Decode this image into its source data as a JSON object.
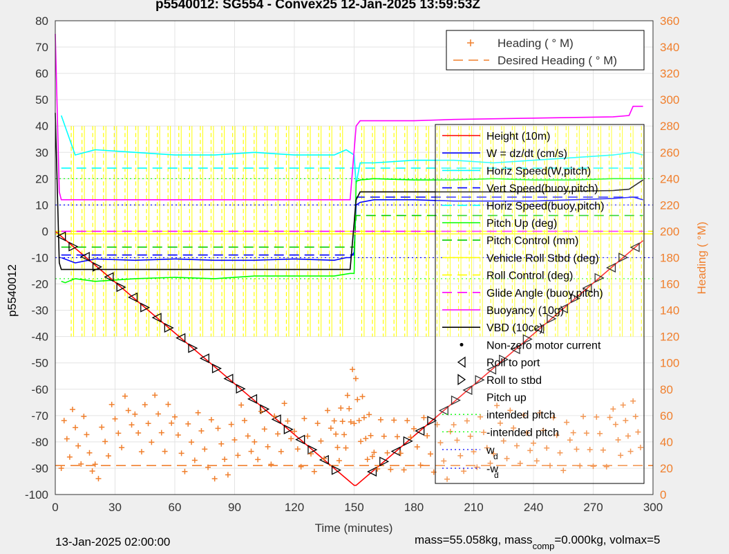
{
  "chart_data": {
    "type": "line",
    "title": "p5540012: SG554 - Convex25 12-Jan-2025 13:59:53Z",
    "xlabel": "Time (minutes)",
    "ylabel": "p5540012",
    "ylabel_right": "Heading (  °M)",
    "xlim": [
      0,
      300
    ],
    "ylim": [
      -100,
      80
    ],
    "ylim_right": [
      0,
      360
    ],
    "xticks": [
      "0",
      "30",
      "60",
      "90",
      "120",
      "150",
      "180",
      "210",
      "240",
      "270",
      "300"
    ],
    "yticks": [
      "-100",
      "-90",
      "-80",
      "-70",
      "-60",
      "-50",
      "-40",
      "-30",
      "-20",
      "-10",
      "0",
      "10",
      "20",
      "30",
      "40",
      "50",
      "60",
      "70",
      "80"
    ],
    "yticks_right": [
      "0",
      "20",
      "40",
      "60",
      "80",
      "100",
      "120",
      "140",
      "160",
      "180",
      "200",
      "220",
      "240",
      "260",
      "280",
      "300",
      "320",
      "340",
      "360"
    ],
    "grid": true,
    "colors": {
      "height": "#ff0000",
      "w": "#0000ff",
      "horiz": "#00ffff",
      "vert_buoy": "#0000ff",
      "horiz_buoy": "#00ffff",
      "pitch": "#00ff00",
      "pitch_ctl": "#00cc00",
      "roll": "#ffff00",
      "roll_ctl": "#ffff00",
      "glide": "#ff00ff",
      "buoyancy": "#ff00ff",
      "vbd": "#000000",
      "heading": "#f07f2c",
      "right_axis": "#f07f2c"
    },
    "legend_top": {
      "placement": "top-right",
      "entries": [
        "Heading (  ° M)",
        "Desired Heading (    ° M)"
      ]
    },
    "legend_main": {
      "placement": "right",
      "entries": [
        "Height (10m)",
        "W = dz/dt (cm/s)",
        "Horiz Speed(W,pitch)",
        "Vert Speed(buoy,pitch)",
        "Horiz Speed(buoy,pitch)",
        "Pitch Up (deg)",
        "Pitch Control (mm)",
        "Vehicle Roll Stbd (deg)",
        "Roll Control (deg)",
        "Glide Angle (buoy,pitch)",
        "Buoyancy (10g)",
        "VBD (10cc)",
        "Non-zero motor current",
        "Roll to port",
        "Roll to stbd",
        "Pitch up",
        "intended pitch",
        "-intended pitch"
      ],
      "wd_label": "w",
      "wd_sub": "d",
      "neg_wd_label": "-w",
      "neg_wd_sub": "d"
    },
    "series": [
      {
        "name": "Height (10m)",
        "x": [
          0,
          150,
          151,
          295
        ],
        "y": [
          0,
          -96.5,
          -96.5,
          -3.5
        ]
      },
      {
        "name": "W = dz/dt (cm/s)",
        "x": [
          3,
          10,
          20,
          40,
          60,
          80,
          100,
          120,
          140,
          146,
          148,
          150,
          151,
          153,
          160,
          180,
          200,
          220,
          240,
          260,
          280,
          290,
          295
        ],
        "y": [
          -10,
          -12,
          -10.5,
          -11,
          -10.5,
          -11,
          -11,
          -10.5,
          -11,
          -10,
          -10,
          -8,
          10,
          11,
          12,
          12,
          11.5,
          11.5,
          11.5,
          12,
          12.5,
          13,
          12
        ]
      },
      {
        "name": "Horiz Speed(W,pitch)",
        "x": [
          3,
          10,
          20,
          40,
          60,
          80,
          100,
          120,
          140,
          146,
          148,
          150,
          151,
          153,
          160,
          180,
          200,
          220,
          240,
          260,
          280,
          290,
          295
        ],
        "y": [
          44,
          29,
          31,
          30,
          29,
          29,
          30,
          29,
          29,
          31,
          30,
          29,
          18,
          26,
          26,
          27,
          27,
          26,
          27,
          28,
          29,
          30,
          29
        ]
      },
      {
        "name": "Vert Speed(buoy,pitch)",
        "x": [
          3,
          150,
          151,
          295
        ],
        "y": [
          -9,
          -9,
          13,
          13
        ]
      },
      {
        "name": "Horiz Speed(buoy,pitch)",
        "x": [
          3,
          150,
          151,
          295
        ],
        "y": [
          24,
          24,
          24,
          24
        ]
      },
      {
        "name": "Pitch Up (deg)",
        "x": [
          3,
          5,
          10,
          20,
          40,
          60,
          80,
          100,
          120,
          140,
          148,
          150,
          151,
          153,
          160,
          180,
          200,
          220,
          240,
          260,
          280,
          295
        ],
        "y": [
          -19,
          -19.5,
          -18,
          -19,
          -18,
          -17.5,
          -18,
          -17,
          -17,
          -17,
          -16,
          -16,
          19,
          19.5,
          20,
          19.5,
          19.5,
          20,
          19.5,
          19.5,
          20,
          20
        ]
      },
      {
        "name": "Pitch Control (mm)",
        "x": [
          3,
          150,
          151,
          295
        ],
        "y": [
          -6,
          -6,
          6,
          6
        ]
      },
      {
        "name": "Vehicle Roll Stbd (deg)",
        "x": [
          0,
          300
        ],
        "y": [
          -1,
          -1
        ]
      },
      {
        "name": "Roll Control (deg)",
        "x": [
          0,
          300
        ],
        "y": [
          0,
          0
        ]
      },
      {
        "name": "Glide Angle (buoy,pitch)",
        "x": [
          3,
          150,
          151,
          295
        ],
        "y": [
          0,
          0,
          0,
          0
        ]
      },
      {
        "name": "Buoyancy (10g)",
        "x": [
          0,
          2,
          3,
          148,
          151,
          153,
          160,
          180,
          200,
          240,
          280,
          288,
          290,
          295
        ],
        "y": [
          75,
          15,
          12,
          12,
          40,
          42,
          42,
          42,
          42.5,
          43,
          43.5,
          44,
          47.5,
          47.5
        ]
      },
      {
        "name": "VBD (10cc)",
        "x": [
          0,
          2,
          3,
          148,
          151,
          153,
          160,
          200,
          240,
          280,
          288,
          295
        ],
        "y": [
          45,
          -12,
          -14.5,
          -14.5,
          12,
          15,
          15,
          15,
          15,
          15.5,
          16,
          19.5
        ]
      },
      {
        "name": "Heading (  ° M)",
        "x": [
          3,
          20,
          40,
          60,
          80,
          100,
          120,
          140,
          150,
          160,
          180,
          200,
          220,
          240,
          260,
          280,
          295
        ],
        "y_right": [
          30,
          20,
          45,
          30,
          20,
          35,
          30,
          25,
          60,
          25,
          30,
          20,
          35,
          30,
          25,
          30,
          45
        ]
      },
      {
        "name": "Desired Heading (    ° M)",
        "x": [
          0,
          300
        ],
        "y_right": [
          22,
          22
        ]
      }
    ],
    "reference_lines": {
      "intended_pitch": 20,
      "neg_intended_pitch": -18,
      "w_d": 10,
      "neg_w_d": -10
    }
  },
  "footer": {
    "date": "13-Jan-2025 02:00:00",
    "mass_prefix": "mass=55.058kg, mass",
    "mass_sub": "comp",
    "mass_suffix": "=0.000kg, volmax=5"
  }
}
